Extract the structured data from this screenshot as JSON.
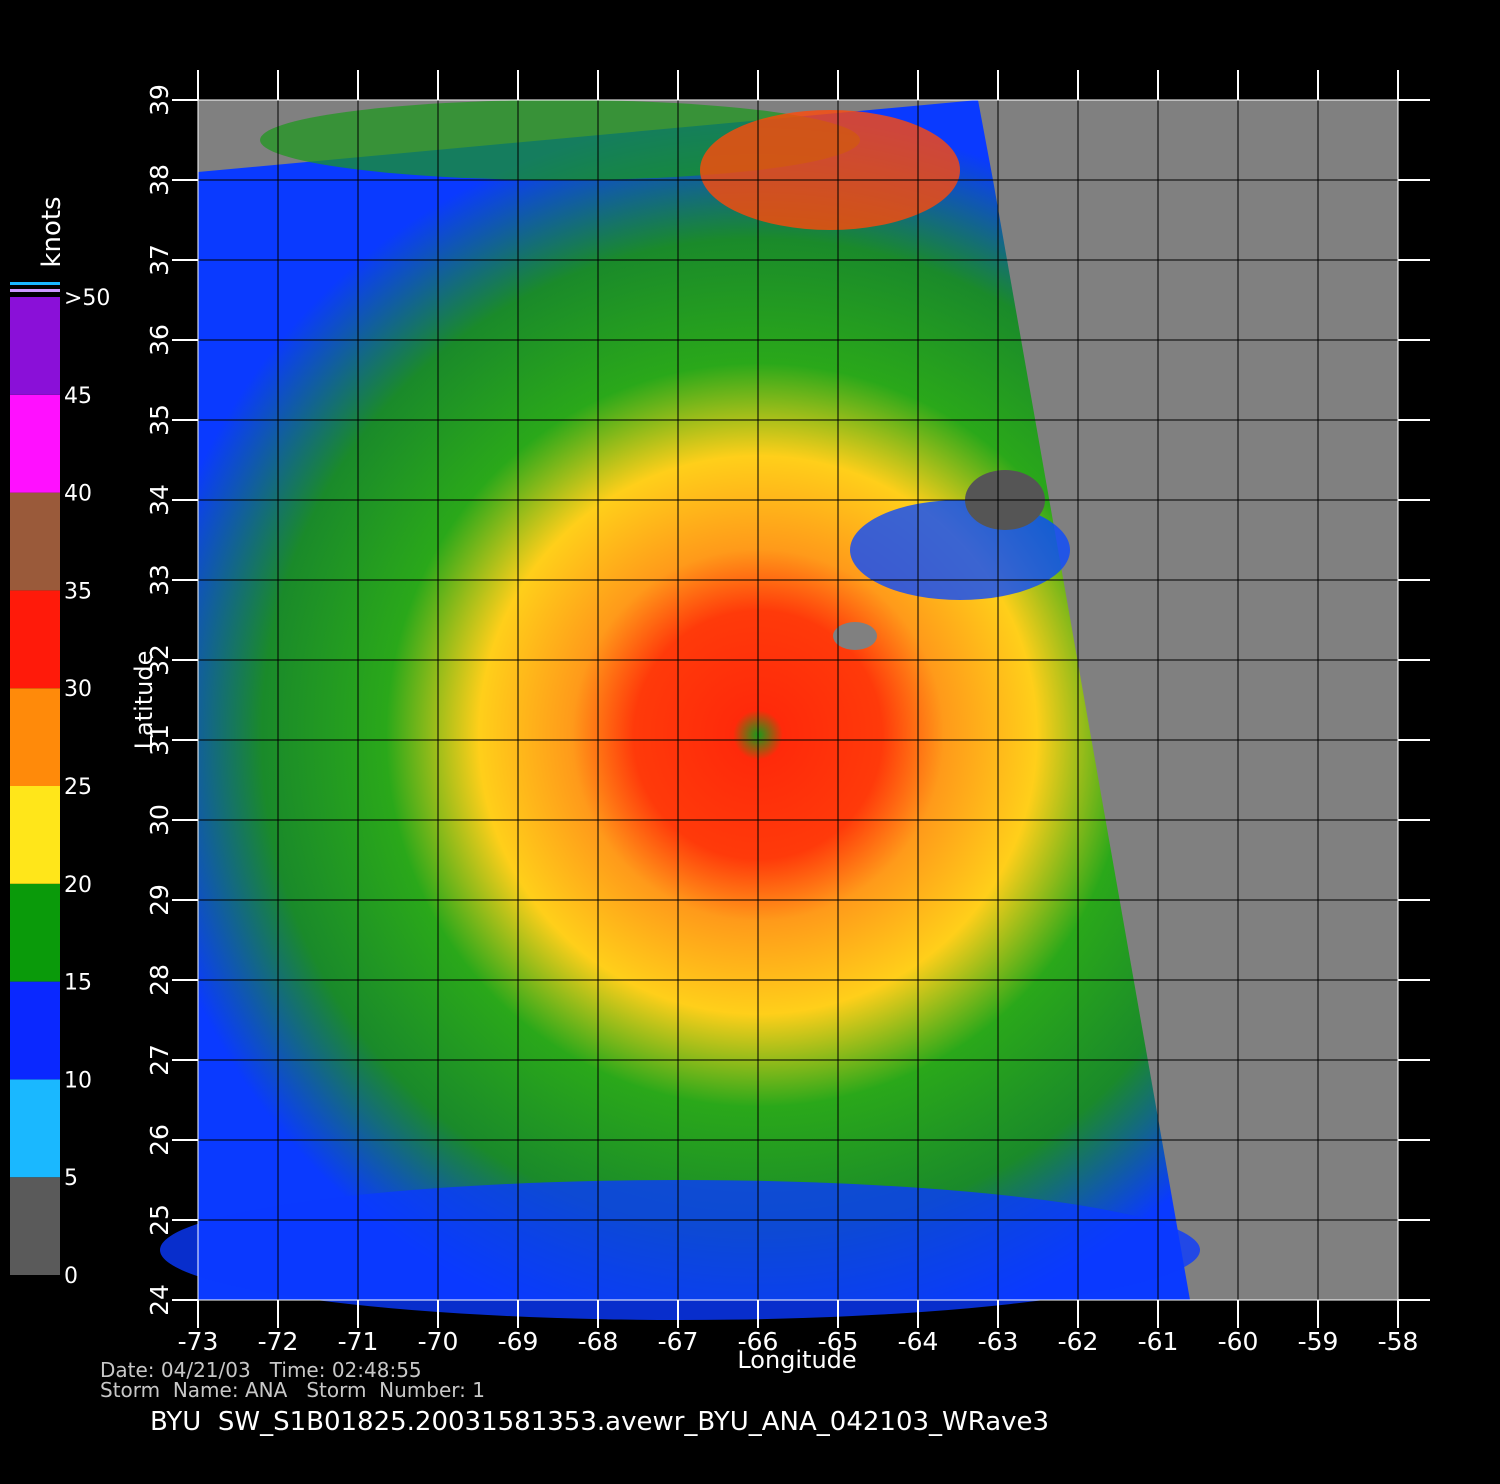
{
  "axes": {
    "xlabel": "Longitude",
    "ylabel": "Latitude",
    "xlim": [
      -73,
      -58
    ],
    "ylim": [
      24,
      39
    ],
    "xticks": [
      -73,
      -72,
      -71,
      -70,
      -69,
      -68,
      -67,
      -66,
      -65,
      -64,
      -63,
      -62,
      -61,
      -60,
      -59,
      -58
    ],
    "yticks": [
      24,
      25,
      26,
      27,
      28,
      29,
      30,
      31,
      32,
      33,
      34,
      35,
      36,
      37,
      38,
      39
    ],
    "grid": true
  },
  "colorbar": {
    "label": "knots",
    "ticks": [
      0,
      5,
      10,
      15,
      20,
      25,
      30,
      35,
      40,
      45,
      {
        "value": 50,
        "label": ">50"
      }
    ],
    "colors": [
      "#5a5a5a",
      "#1ab8ff",
      "#0a28ff",
      "#0a9a0a",
      "#ffe61a",
      "#ff8a0a",
      "#ff1a0a",
      "#9a5a3a",
      "#ff10ff",
      "#8a10d8"
    ]
  },
  "footer": {
    "date_line": "Date: 04/21/03   Time: 02:48:55",
    "storm_line": "Storm  Name: ANA   Storm  Number: 1",
    "title": "BYU  SW_S1B01825.20031581353.avewr_BYU_ANA_042103_WRave3"
  }
}
